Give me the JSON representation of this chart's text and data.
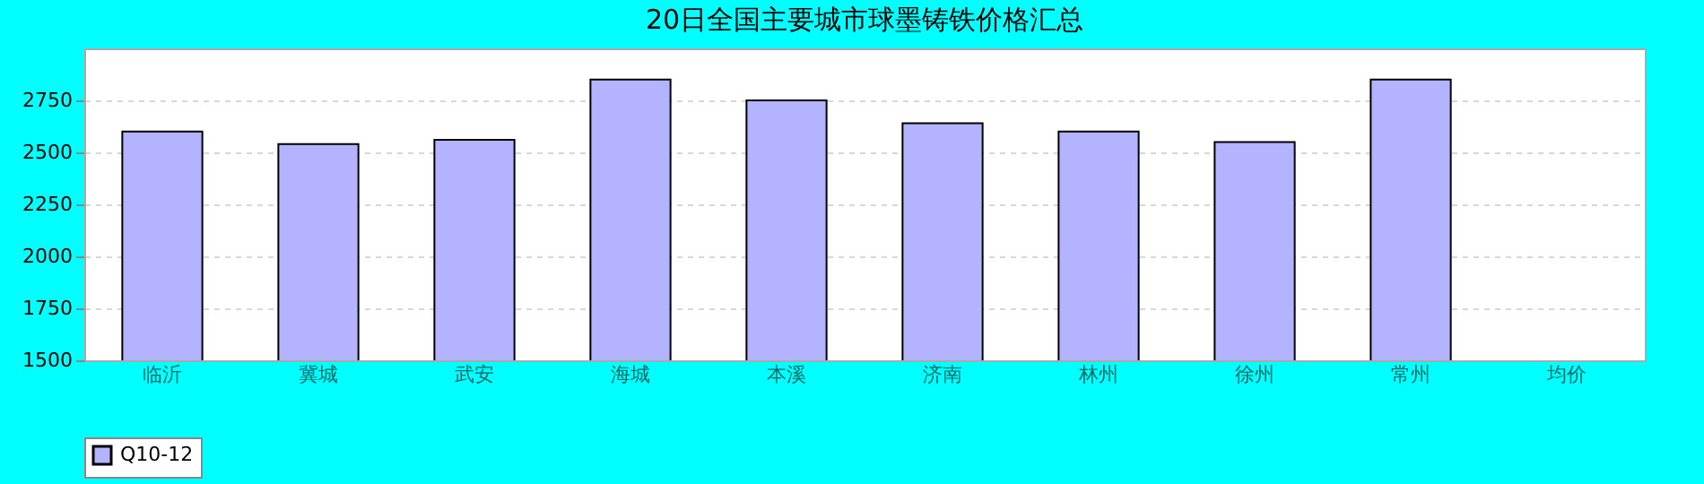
{
  "chart_data": {
    "type": "bar",
    "title": "20日全国主要城市球墨铸铁价格汇总",
    "categories": [
      "临沂",
      "冀城",
      "武安",
      "海城",
      "本溪",
      "济南",
      "林州",
      "徐州",
      "常州",
      "均价"
    ],
    "series": [
      {
        "name": "Q10-12",
        "color": "#b3b3ff",
        "values": [
          2600,
          2540,
          2560,
          2850,
          2750,
          2640,
          2600,
          2550,
          2850,
          null
        ]
      }
    ],
    "ylim": [
      1500,
      3000
    ],
    "yticks": [
      1500,
      1750,
      2000,
      2250,
      2500,
      2750
    ],
    "grid": "y",
    "legend": "bottom"
  }
}
